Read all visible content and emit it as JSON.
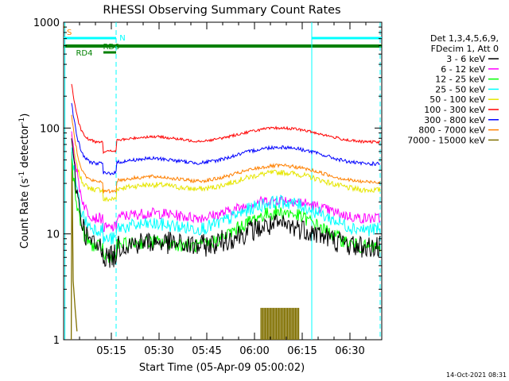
{
  "chart_data": {
    "type": "line",
    "title": "RHESSI Observing Summary Count Rates",
    "xlabel": "Start Time (05-Apr-09 05:00:02)",
    "ylabel": "Count Rate (s⁻¹ detector⁻¹)",
    "ylabel_parts": {
      "main": "Count Rate (s",
      "sup1": "-1",
      "mid": " detector",
      "sup2": "-1",
      "end": ")"
    },
    "yscale": "log",
    "ylim": [
      1,
      1000
    ],
    "xlim_minutes": [
      0,
      100
    ],
    "x_ticks": [
      {
        "label": "05:15",
        "m": 15
      },
      {
        "label": "05:30",
        "m": 30
      },
      {
        "label": "05:45",
        "m": 45
      },
      {
        "label": "06:00",
        "m": 60
      },
      {
        "label": "06:15",
        "m": 75
      },
      {
        "label": "06:30",
        "m": 90
      }
    ],
    "y_ticks": [
      {
        "label": "1",
        "v": 1
      },
      {
        "label": "10",
        "v": 10
      },
      {
        "label": "100",
        "v": 100
      },
      {
        "label": "1000",
        "v": 1000
      }
    ],
    "legend_header": [
      "Det 1,3,4,5,6,9,",
      "FDecim 1, Att 0"
    ],
    "legend_position": "right",
    "timestamp": "14-Oct-2021 08:31",
    "series": [
      {
        "name": "3 - 6 keV",
        "color": "#000000",
        "spike": 60,
        "base": 7.5,
        "peak": 12,
        "noise": 0.25
      },
      {
        "name": "6 - 12 keV",
        "color": "#ff00ff",
        "spike": 80,
        "base": 14,
        "peak": 21,
        "noise": 0.12
      },
      {
        "name": "12 - 25 keV",
        "color": "#00ff00",
        "spike": 40,
        "base": 7.5,
        "peak": 16,
        "noise": 0.15
      },
      {
        "name": "25 - 50 keV",
        "color": "#00ffff",
        "spike": 50,
        "base": 11,
        "peak": 20,
        "noise": 0.15
      },
      {
        "name": "50 - 100 keV",
        "color": "#e6e600",
        "spike": 60,
        "base": 26,
        "peak": 38,
        "noise": 0.06
      },
      {
        "name": "100 - 300 keV",
        "color": "#ff0000",
        "spike": 190,
        "base": 74,
        "peak": 100,
        "noise": 0.03
      },
      {
        "name": "300 - 800 keV",
        "color": "#0000ff",
        "spike": 130,
        "base": 46,
        "peak": 66,
        "noise": 0.04
      },
      {
        "name": "800 - 7000 keV",
        "color": "#ff8000",
        "spike": 100,
        "base": 31,
        "peak": 44,
        "noise": 0.04
      },
      {
        "name": "7000 - 15000 keV",
        "color": "#807000",
        "spike": 60,
        "base": 1,
        "peak": 1,
        "noise": 0
      }
    ],
    "flags": [
      {
        "label": "S",
        "color": "#ff8000",
        "start": 0,
        "end": 0.4
      },
      {
        "label": "N",
        "color": "#00ffff",
        "start": 0,
        "end": 16.5
      },
      {
        "label": "N",
        "color": "#00ffff",
        "start": 78,
        "end": 100
      },
      {
        "label": "RD0",
        "color": "#008000",
        "start": 0,
        "end": 100
      },
      {
        "label": "RD4",
        "color": "#008000",
        "start": 12.5,
        "end": 16.5
      }
    ],
    "grid": false
  }
}
